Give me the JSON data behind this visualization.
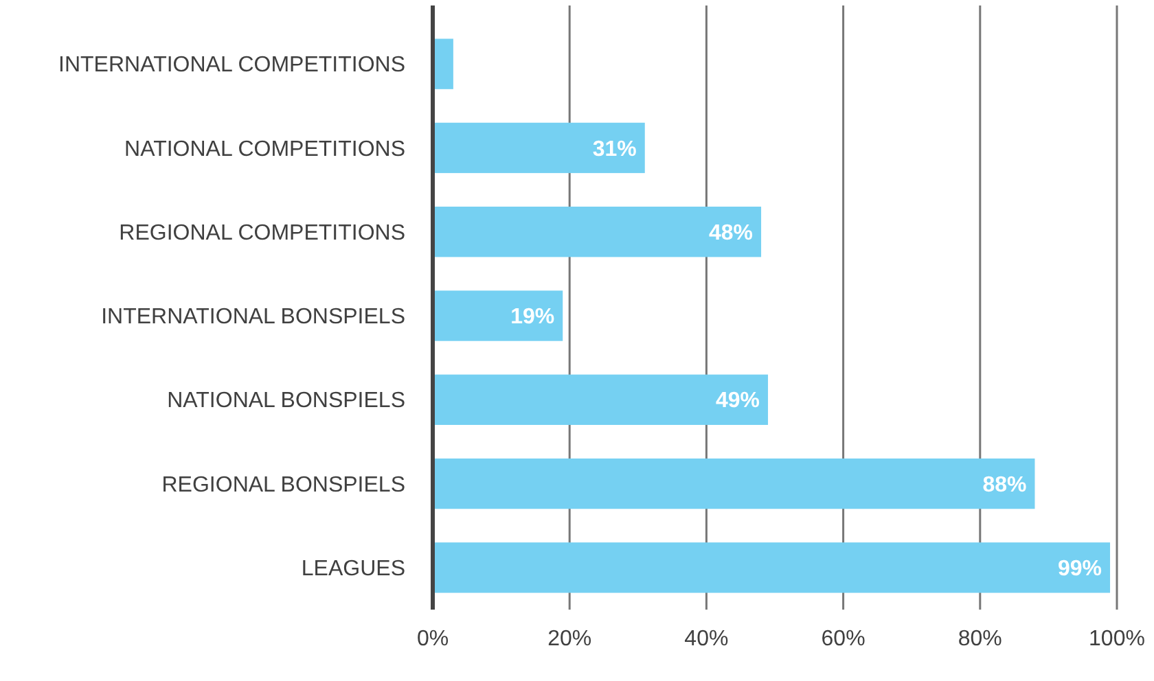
{
  "chart_data": {
    "type": "bar",
    "orientation": "horizontal",
    "categories": [
      "INTERNATIONAL COMPETITIONS",
      "NATIONAL COMPETITIONS",
      "REGIONAL COMPETITIONS",
      "INTERNATIONAL BONSPIELS",
      "NATIONAL BONSPIELS",
      "REGIONAL BONSPIELS",
      "LEAGUES"
    ],
    "values": [
      3,
      31,
      48,
      19,
      49,
      88,
      99
    ],
    "value_labels": [
      null,
      "31%",
      "48%",
      "19%",
      "49%",
      "88%",
      "99%"
    ],
    "color": "#75d0f2",
    "xlim": [
      0,
      100
    ],
    "xticks": [
      {
        "value": 0,
        "label": "0%"
      },
      {
        "value": 20,
        "label": "20%"
      },
      {
        "value": 40,
        "label": "40%"
      },
      {
        "value": 60,
        "label": "60%"
      },
      {
        "value": 80,
        "label": "80%"
      },
      {
        "value": 100,
        "label": "100%"
      }
    ],
    "grid": "x"
  }
}
